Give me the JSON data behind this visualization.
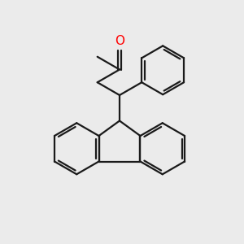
{
  "background_color": "#ebebeb",
  "line_color": "#1a1a1a",
  "oxygen_color": "#ff0000",
  "line_width": 1.6,
  "figsize": [
    3.0,
    3.0
  ],
  "dpi": 100,
  "xlim": [
    0,
    10
  ],
  "ylim": [
    0,
    10
  ]
}
